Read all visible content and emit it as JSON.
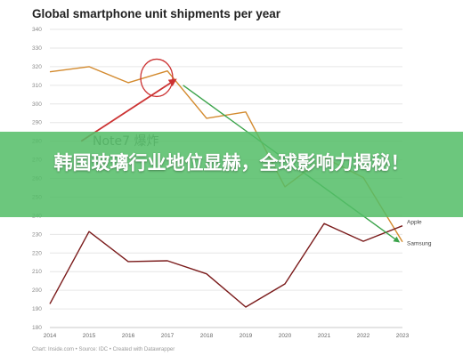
{
  "chart_data": {
    "type": "line",
    "title": "Global smartphone unit shipments per year",
    "source": "Chart: Inside.com • Source: IDC • Created with Datawrapper",
    "x": [
      "2014",
      "2015",
      "2016",
      "2017",
      "2018",
      "2019",
      "2020",
      "2021",
      "2022",
      "2023"
    ],
    "ylim": [
      180,
      340
    ],
    "yticks": [
      180,
      190,
      200,
      210,
      220,
      230,
      240,
      250,
      260,
      270,
      280,
      290,
      300,
      310,
      320,
      330,
      340
    ],
    "grid": true,
    "series": [
      {
        "name": "Samsung",
        "color": "#d38a2e",
        "values": [
          317.2,
          320.0,
          311.4,
          317.7,
          292.3,
          295.7,
          255.5,
          271.2,
          260.5,
          226.0
        ]
      },
      {
        "name": "Apple",
        "color": "#7a1a1a",
        "values": [
          192.7,
          231.5,
          215.4,
          215.8,
          208.8,
          191.0,
          203.4,
          235.8,
          226.3,
          234.6
        ]
      }
    ],
    "annotations": [
      {
        "type": "circle",
        "x": "2017",
        "y": 314,
        "color": "#cc3333"
      },
      {
        "type": "text",
        "text": "Note7 爆炸",
        "x": "2016",
        "y": 278
      },
      {
        "type": "arrow",
        "from": [
          "2014.8",
          280
        ],
        "to": [
          "2017.3",
          313
        ],
        "color": "#cc3333"
      },
      {
        "type": "arrow",
        "from": [
          "2017.4",
          310
        ],
        "to": [
          "2023",
          226
        ],
        "color": "#3aa34a"
      }
    ]
  },
  "overlay": {
    "headline": "韩国玻璃行业地位显赫，全球影响力揭秘！",
    "color": "#54be68"
  }
}
